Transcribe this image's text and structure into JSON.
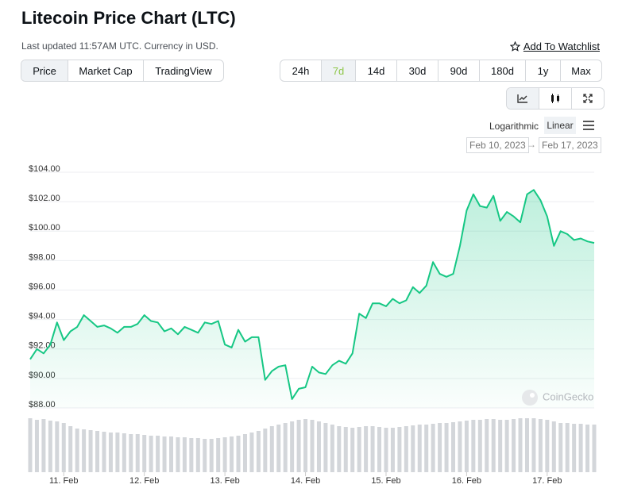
{
  "header": {
    "title": "Litecoin Price Chart (LTC)",
    "subtitle": "Last updated 11:57AM UTC. Currency in USD.",
    "watchlist": "Add To Watchlist"
  },
  "tabs": [
    "Price",
    "Market Cap",
    "TradingView"
  ],
  "active_tab": 0,
  "ranges": [
    "24h",
    "7d",
    "14d",
    "30d",
    "90d",
    "180d",
    "1y",
    "Max"
  ],
  "active_range": 1,
  "scale_options": [
    "Logarithmic",
    "Linear"
  ],
  "active_scale": 1,
  "date_from": "Feb 10, 2023",
  "date_arrow": "→",
  "date_to": "Feb 17, 2023",
  "watermark": "CoinGecko",
  "chart_data": {
    "type": "line",
    "categories": [
      null,
      null,
      null,
      null,
      null,
      "11. Feb",
      null,
      null,
      null,
      null,
      null,
      null,
      null,
      null,
      null,
      null,
      null,
      "12. Feb",
      null,
      null,
      null,
      null,
      null,
      null,
      null,
      null,
      null,
      null,
      null,
      "13. Feb",
      null,
      null,
      null,
      null,
      null,
      null,
      null,
      null,
      null,
      null,
      null,
      "14. Feb",
      null,
      null,
      null,
      null,
      null,
      null,
      null,
      null,
      null,
      null,
      null,
      "15. Feb",
      null,
      null,
      null,
      null,
      null,
      null,
      null,
      null,
      null,
      null,
      null,
      "16. Feb",
      null,
      null,
      null,
      null,
      null,
      null,
      null,
      null,
      null,
      null,
      null,
      "17. Feb",
      null,
      null,
      null,
      null,
      null,
      null,
      null
    ],
    "values": [
      91.3,
      92.0,
      91.7,
      92.3,
      93.8,
      92.6,
      93.2,
      93.5,
      94.3,
      93.9,
      93.5,
      93.6,
      93.4,
      93.1,
      93.5,
      93.5,
      93.7,
      94.3,
      93.9,
      93.8,
      93.2,
      93.4,
      93.0,
      93.5,
      93.3,
      93.1,
      93.8,
      93.7,
      93.9,
      92.3,
      92.1,
      93.3,
      92.5,
      92.8,
      92.8,
      89.9,
      90.5,
      90.8,
      90.9,
      88.6,
      89.3,
      89.4,
      90.8,
      90.4,
      90.3,
      90.9,
      91.2,
      91.0,
      91.7,
      94.4,
      94.1,
      95.1,
      95.1,
      94.9,
      95.4,
      95.1,
      95.3,
      96.2,
      95.8,
      96.3,
      97.9,
      97.1,
      96.9,
      97.1,
      99.0,
      101.4,
      102.5,
      101.7,
      101.6,
      102.4,
      100.7,
      101.3,
      101.0,
      100.6,
      102.5,
      102.8,
      102.1,
      101.0,
      99.0,
      100.0,
      99.8,
      99.4,
      99.5,
      99.3,
      99.2
    ],
    "color": "#16c784",
    "volume": [
      68,
      66,
      67,
      65,
      64,
      62,
      58,
      55,
      54,
      53,
      52,
      51,
      50,
      50,
      49,
      48,
      48,
      47,
      46,
      46,
      45,
      45,
      44,
      44,
      43,
      43,
      42,
      42,
      43,
      44,
      45,
      46,
      48,
      50,
      52,
      55,
      58,
      60,
      62,
      64,
      66,
      67,
      66,
      64,
      62,
      60,
      58,
      57,
      56,
      57,
      58,
      58,
      57,
      56,
      56,
      57,
      58,
      59,
      60,
      60,
      61,
      62,
      62,
      63,
      64,
      65,
      66,
      66,
      67,
      67,
      66,
      66,
      67,
      68,
      68,
      68,
      67,
      66,
      64,
      62,
      62,
      61,
      61,
      60,
      60
    ],
    "volume_color": "#d3d6da",
    "ylim": [
      88,
      104
    ],
    "yticks": [
      {
        "value": 88,
        "label": "$88.00"
      },
      {
        "value": 90,
        "label": "$90.00"
      },
      {
        "value": 92,
        "label": "$92.00"
      },
      {
        "value": 94,
        "label": "$94.00"
      },
      {
        "value": 96,
        "label": "$96.00"
      },
      {
        "value": 98,
        "label": "$98.00"
      },
      {
        "value": 100,
        "label": "$100.00"
      },
      {
        "value": 102,
        "label": "$102.00"
      },
      {
        "value": 104,
        "label": "$104.00"
      }
    ],
    "grid": true
  }
}
